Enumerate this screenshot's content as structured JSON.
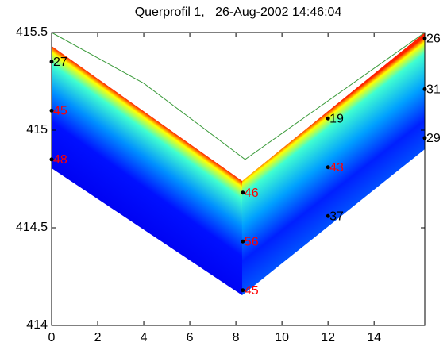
{
  "chart_data": {
    "type": "profile",
    "title": "Querprofil 1,   26-Aug-2002 14:46:04",
    "xlim": [
      0,
      16.2
    ],
    "xticks": [
      0,
      2,
      4,
      6,
      8,
      10,
      12,
      14
    ],
    "ylim": [
      414,
      415.5
    ],
    "yticks": [
      414,
      414.5,
      415,
      415.5
    ],
    "line": {
      "x": [
        0,
        4,
        8.4,
        16.2
      ],
      "values": [
        415.5,
        415.24,
        414.85,
        415.5
      ],
      "color": "#3a9a3a"
    },
    "points": [
      {
        "x": 0,
        "y": 415.35,
        "label": "27",
        "color": "#000000"
      },
      {
        "x": 0,
        "y": 415.1,
        "label": "45",
        "color": "#ff0000"
      },
      {
        "x": 0,
        "y": 414.85,
        "label": "48",
        "color": "#ff0000"
      },
      {
        "x": 8.3,
        "y": 414.68,
        "label": "46",
        "color": "#ff0000"
      },
      {
        "x": 8.3,
        "y": 414.43,
        "label": "56",
        "color": "#ff0000"
      },
      {
        "x": 8.3,
        "y": 414.18,
        "label": "45",
        "color": "#ff0000"
      },
      {
        "x": 12,
        "y": 415.06,
        "label": "19",
        "color": "#000000"
      },
      {
        "x": 12,
        "y": 414.81,
        "label": "43",
        "color": "#ff0000"
      },
      {
        "x": 12,
        "y": 414.56,
        "label": "37",
        "color": "#000000"
      },
      {
        "x": 16.2,
        "y": 415.47,
        "label": "26",
        "color": "#000000"
      },
      {
        "x": 16.2,
        "y": 415.21,
        "label": "31",
        "color": "#000000"
      },
      {
        "x": 16.2,
        "y": 414.96,
        "label": "29",
        "color": "#000000"
      }
    ]
  }
}
